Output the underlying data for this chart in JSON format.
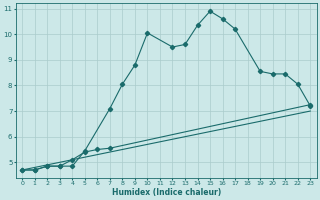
{
  "xlabel": "Humidex (Indice chaleur)",
  "bg_color": "#cce8e8",
  "grid_color": "#aacccc",
  "line_color": "#1a6b6b",
  "xlim": [
    -0.5,
    23.5
  ],
  "ylim": [
    4.4,
    11.2
  ],
  "yticks": [
    5,
    6,
    7,
    8,
    9,
    10,
    11
  ],
  "xticks": [
    0,
    1,
    2,
    3,
    4,
    5,
    6,
    7,
    8,
    9,
    10,
    11,
    12,
    13,
    14,
    15,
    16,
    17,
    18,
    19,
    20,
    21,
    22,
    23
  ],
  "line1_x": [
    0,
    1,
    2,
    3,
    4,
    5,
    7,
    8,
    9,
    10,
    12,
    13,
    14,
    15,
    16,
    17,
    19,
    20,
    21,
    22,
    23
  ],
  "line1_y": [
    4.7,
    4.7,
    4.85,
    4.85,
    4.85,
    5.45,
    7.1,
    8.05,
    8.8,
    10.05,
    9.5,
    9.6,
    10.35,
    10.9,
    10.6,
    10.2,
    8.55,
    8.45,
    8.45,
    8.05,
    7.2
  ],
  "line2_x": [
    0,
    1,
    2,
    3,
    4,
    5,
    6,
    7,
    23
  ],
  "line2_y": [
    4.7,
    4.7,
    4.85,
    4.85,
    5.1,
    5.4,
    5.5,
    5.55,
    7.25
  ],
  "line3_x": [
    0,
    23
  ],
  "line3_y": [
    4.7,
    7.0
  ]
}
